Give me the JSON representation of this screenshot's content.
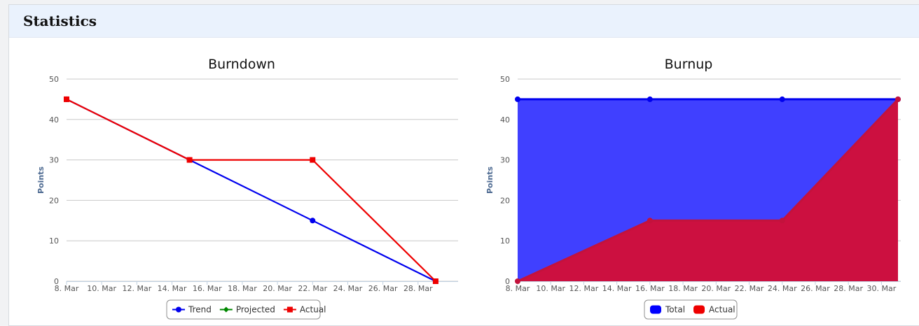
{
  "panel": {
    "title": "Statistics"
  },
  "chart_data": [
    {
      "type": "line",
      "title": "Burndown",
      "ylabel": "Points",
      "xlabel": "",
      "ylim": [
        0,
        50
      ],
      "yticks": [
        0,
        10,
        20,
        30,
        40,
        50
      ],
      "xlim": [
        "2014-03-08",
        "2014-03-30"
      ],
      "xtick_labels": [
        "8. Mar",
        "10. Mar",
        "12. Mar",
        "14. Mar",
        "16. Mar",
        "18. Mar",
        "20. Mar",
        "22. Mar",
        "24. Mar",
        "26. Mar",
        "28. Mar"
      ],
      "grid": true,
      "legend": "bottom-center",
      "series": [
        {
          "name": "Trend",
          "color": "#0000ee",
          "marker": "circle",
          "points": [
            [
              "2014-03-08",
              45
            ],
            [
              "2014-03-15",
              30
            ],
            [
              "2014-03-22",
              15
            ],
            [
              "2014-03-29",
              0
            ]
          ]
        },
        {
          "name": "Projected",
          "color": "#008800",
          "marker": "diamond",
          "points": []
        },
        {
          "name": "Actual",
          "color": "#ee0000",
          "marker": "square",
          "points": [
            [
              "2014-03-08",
              45
            ],
            [
              "2014-03-15",
              30
            ],
            [
              "2014-03-22",
              30
            ],
            [
              "2014-03-29",
              0
            ]
          ]
        }
      ]
    },
    {
      "type": "area",
      "title": "Burnup",
      "ylabel": "Points",
      "xlabel": "",
      "ylim": [
        0,
        50
      ],
      "yticks": [
        0,
        10,
        20,
        30,
        40,
        50
      ],
      "xlim": [
        "2014-03-08",
        "2014-03-31"
      ],
      "xtick_labels": [
        "8. Mar",
        "10. Mar",
        "12. Mar",
        "14. Mar",
        "16. Mar",
        "18. Mar",
        "20. Mar",
        "22. Mar",
        "24. Mar",
        "26. Mar",
        "28. Mar",
        "30. Mar"
      ],
      "grid": true,
      "legend": "bottom-center",
      "series": [
        {
          "name": "Total",
          "color": "#0000ff",
          "points": [
            [
              "2014-03-08",
              45
            ],
            [
              "2014-03-16",
              45
            ],
            [
              "2014-03-24",
              45
            ],
            [
              "2014-03-31",
              45
            ]
          ]
        },
        {
          "name": "Actual",
          "color": "#ee0000",
          "points": [
            [
              "2014-03-08",
              0
            ],
            [
              "2014-03-16",
              15
            ],
            [
              "2014-03-24",
              15
            ],
            [
              "2014-03-31",
              45
            ]
          ]
        }
      ]
    }
  ]
}
